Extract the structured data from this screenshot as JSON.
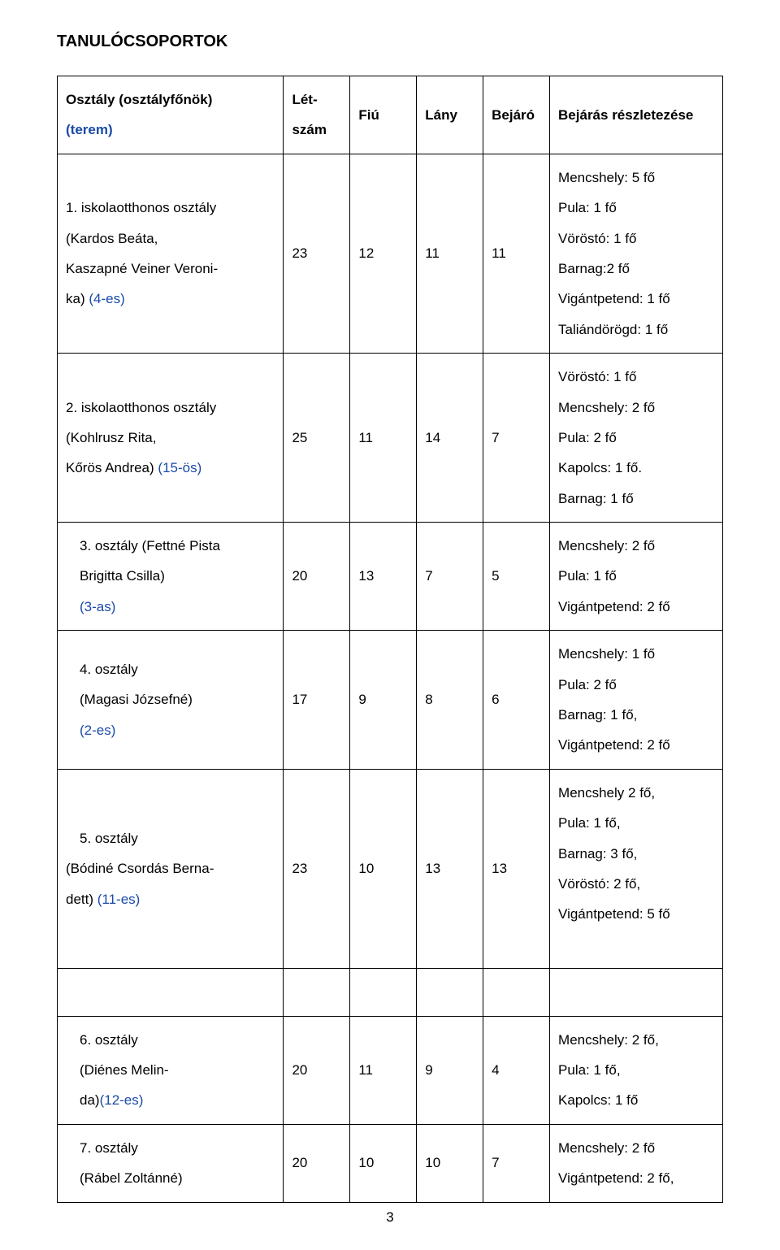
{
  "title": "TANULÓCSOPORTOK",
  "header": {
    "c0a": "Osztály (osztályfőnök)",
    "c0b": "(terem)",
    "c1a": "Lét-",
    "c1b": "szám",
    "c2": "Fiú",
    "c3": "Lány",
    "c4": "Bejáró",
    "c5": "Bejárás részletezése"
  },
  "rows": [
    {
      "class_lines": [
        "1. iskolaotthonos osztály",
        "(Kardos Beáta,",
        "Kaszapné Veiner Veroni-",
        "ka) (4-es)"
      ],
      "class_room_last_idx": 3,
      "let": "23",
      "fiu": "12",
      "lany": "11",
      "bej": "11",
      "details": [
        "Mencshely: 5 fő",
        "Pula: 1 fő",
        "Vöröstó: 1  fő",
        "Barnag:2 fő",
        "Vigántpetend: 1 fő",
        "Taliándörögd: 1 fő"
      ]
    },
    {
      "class_lines": [
        "2. iskolaotthonos osztály",
        "(Kohlrusz Rita,",
        "Kőrös Andrea) (15-ös)"
      ],
      "class_room_last_idx": 2,
      "let": "25",
      "fiu": "11",
      "lany": "14",
      "bej": "7",
      "details": [
        "Vöröstó: 1 fő",
        "Mencshely: 2 fő",
        " Pula: 2 fő",
        "Kapolcs: 1 fő.",
        "Barnag: 1 fő"
      ]
    },
    {
      "class_lines": [
        "3. osztály (Fettné Pista",
        "Brigitta Csilla)",
        "(3-as)"
      ],
      "class_room_last_idx": 2,
      "indent": true,
      "let": "20",
      "fiu": "13",
      "lany": "7",
      "bej": "5",
      "details": [
        "Mencshely: 2 fő",
        " Pula: 1 fő",
        "Vigántpetend: 2 fő"
      ]
    },
    {
      "class_lines": [
        "4. osztály",
        "(Magasi Józsefné)",
        "(2-es)"
      ],
      "class_room_last_idx": 2,
      "indent": true,
      "let": "17",
      "fiu": "9",
      "lany": "8",
      "bej": "6",
      "details": [
        "Mencshely: 1 fő",
        "Pula: 2 fő",
        "Barnag: 1 fő,",
        "Vigántpetend: 2 fő"
      ]
    },
    {
      "class_lines": [
        "5. osztály",
        "(Bódiné Csordás Berna-",
        "dett) (11-es)"
      ],
      "class_room_last_idx": 2,
      "first_indent": true,
      "let": "23",
      "fiu": "10",
      "lany": "13",
      "bej": "13",
      "details": [
        "Mencshely 2 fő,",
        "Pula: 1 fő,",
        "Barnag: 3 fő,",
        "Vöröstó: 2 fő,",
        "Vigántpetend: 5 fő",
        ""
      ]
    }
  ],
  "rows2": [
    {
      "class_lines": [
        "6. osztály",
        "(Diénes Melin-",
        "da)(12-es)"
      ],
      "class_room_last_idx": 2,
      "indent": true,
      "let": "20",
      "fiu": "11",
      "lany": "9",
      "bej": "4",
      "details": [
        "Mencshely: 2 fő,",
        "Pula: 1 fő,",
        "Kapolcs: 1 fő"
      ]
    },
    {
      "class_lines": [
        "7. osztály",
        "(Rábel Zoltánné)"
      ],
      "class_room_last_idx": -1,
      "indent": true,
      "let": "20",
      "fiu": "10",
      "lany": "10",
      "bej": "7",
      "details": [
        "Mencshely: 2 fő",
        " Vigántpetend: 2 fő,"
      ]
    }
  ],
  "page_number": "3",
  "colors": {
    "blue": "#1a4aa8",
    "text": "#000000",
    "bg": "#ffffff",
    "border": "#000000"
  }
}
